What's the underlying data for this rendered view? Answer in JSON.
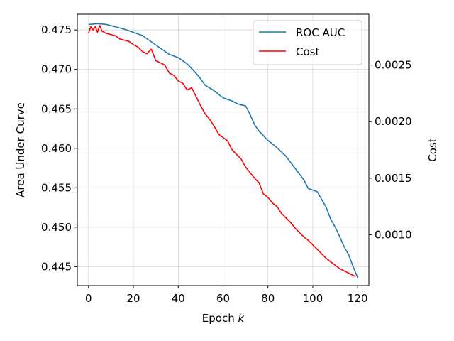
{
  "chart_data": {
    "type": "line",
    "title": "",
    "xlabel": "Epoch",
    "xlabel_italic": "k",
    "ylabel_left": "Area Under Curve",
    "ylabel_right": "Cost",
    "xlim": [
      -5,
      125
    ],
    "ylim_left": [
      0.4426,
      0.477
    ],
    "ylim_right": [
      0.00055,
      0.00295
    ],
    "x_ticks": [
      0,
      20,
      40,
      60,
      80,
      100,
      120
    ],
    "y_ticks_left": [
      0.445,
      0.45,
      0.455,
      0.46,
      0.465,
      0.47,
      0.475
    ],
    "y_ticks_left_labels": [
      "0.445",
      "0.450",
      "0.455",
      "0.460",
      "0.465",
      "0.470",
      "0.475"
    ],
    "y_ticks_right": [
      0.001,
      0.0015,
      0.002,
      0.0025
    ],
    "y_ticks_right_labels": [
      "0.0010",
      "0.0015",
      "0.0020",
      "0.0025"
    ],
    "grid": true,
    "legend_position": "top-right",
    "series": [
      {
        "name": "ROC AUC",
        "axis": "left",
        "color": "#1f77b4",
        "points": [
          [
            0,
            0.4757
          ],
          [
            4,
            0.4758
          ],
          [
            8,
            0.4757
          ],
          [
            12,
            0.4754
          ],
          [
            16,
            0.4751
          ],
          [
            20,
            0.4747
          ],
          [
            24,
            0.4743
          ],
          [
            28,
            0.4735
          ],
          [
            32,
            0.4727
          ],
          [
            36,
            0.4719
          ],
          [
            40,
            0.4715
          ],
          [
            44,
            0.4707
          ],
          [
            48,
            0.4695
          ],
          [
            50,
            0.4688
          ],
          [
            52,
            0.468
          ],
          [
            56,
            0.4673
          ],
          [
            60,
            0.4664
          ],
          [
            64,
            0.466
          ],
          [
            66,
            0.4657
          ],
          [
            68,
            0.4655
          ],
          [
            70,
            0.4654
          ],
          [
            72,
            0.4643
          ],
          [
            74,
            0.463
          ],
          [
            76,
            0.4622
          ],
          [
            80,
            0.461
          ],
          [
            84,
            0.4601
          ],
          [
            88,
            0.459
          ],
          [
            92,
            0.4575
          ],
          [
            96,
            0.456
          ],
          [
            98,
            0.4549
          ],
          [
            102,
            0.4545
          ],
          [
            104,
            0.4535
          ],
          [
            106,
            0.4525
          ],
          [
            108,
            0.451
          ],
          [
            110,
            0.45
          ],
          [
            112,
            0.4488
          ],
          [
            114,
            0.4475
          ],
          [
            116,
            0.4465
          ],
          [
            118,
            0.445
          ],
          [
            120,
            0.4436
          ]
        ]
      },
      {
        "name": "Cost",
        "axis": "right",
        "color": "#ff0000",
        "points": [
          [
            0,
            0.00278
          ],
          [
            1,
            0.00284
          ],
          [
            2,
            0.00281
          ],
          [
            3,
            0.00284
          ],
          [
            4,
            0.00279
          ],
          [
            5,
            0.00285
          ],
          [
            6,
            0.0028
          ],
          [
            8,
            0.00278
          ],
          [
            12,
            0.00276
          ],
          [
            14,
            0.00273
          ],
          [
            18,
            0.00271
          ],
          [
            20,
            0.00268
          ],
          [
            22,
            0.00266
          ],
          [
            24,
            0.00262
          ],
          [
            26,
            0.0026
          ],
          [
            28,
            0.00264
          ],
          [
            30,
            0.00254
          ],
          [
            32,
            0.00252
          ],
          [
            34,
            0.0025
          ],
          [
            36,
            0.00243
          ],
          [
            38,
            0.00241
          ],
          [
            40,
            0.00236
          ],
          [
            42,
            0.00234
          ],
          [
            44,
            0.00228
          ],
          [
            46,
            0.0023
          ],
          [
            48,
            0.00222
          ],
          [
            50,
            0.00214
          ],
          [
            52,
            0.00207
          ],
          [
            54,
            0.00202
          ],
          [
            56,
            0.00196
          ],
          [
            58,
            0.00189
          ],
          [
            60,
            0.00186
          ],
          [
            62,
            0.00183
          ],
          [
            64,
            0.00175
          ],
          [
            66,
            0.00171
          ],
          [
            68,
            0.00167
          ],
          [
            70,
            0.0016
          ],
          [
            72,
            0.00155
          ],
          [
            74,
            0.0015
          ],
          [
            76,
            0.00146
          ],
          [
            78,
            0.00136
          ],
          [
            80,
            0.00133
          ],
          [
            82,
            0.00128
          ],
          [
            84,
            0.00125
          ],
          [
            86,
            0.00119
          ],
          [
            88,
            0.00115
          ],
          [
            90,
            0.00111
          ],
          [
            92,
            0.00106
          ],
          [
            94,
            0.00102
          ],
          [
            96,
            0.00098
          ],
          [
            98,
            0.00095
          ],
          [
            100,
            0.00091
          ],
          [
            102,
            0.00087
          ],
          [
            104,
            0.00083
          ],
          [
            106,
            0.00079
          ],
          [
            108,
            0.00076
          ],
          [
            110,
            0.00073
          ],
          [
            112,
            0.0007
          ],
          [
            114,
            0.00068
          ],
          [
            116,
            0.00066
          ],
          [
            118,
            0.00064
          ],
          [
            119,
            0.00063
          ]
        ]
      }
    ]
  }
}
